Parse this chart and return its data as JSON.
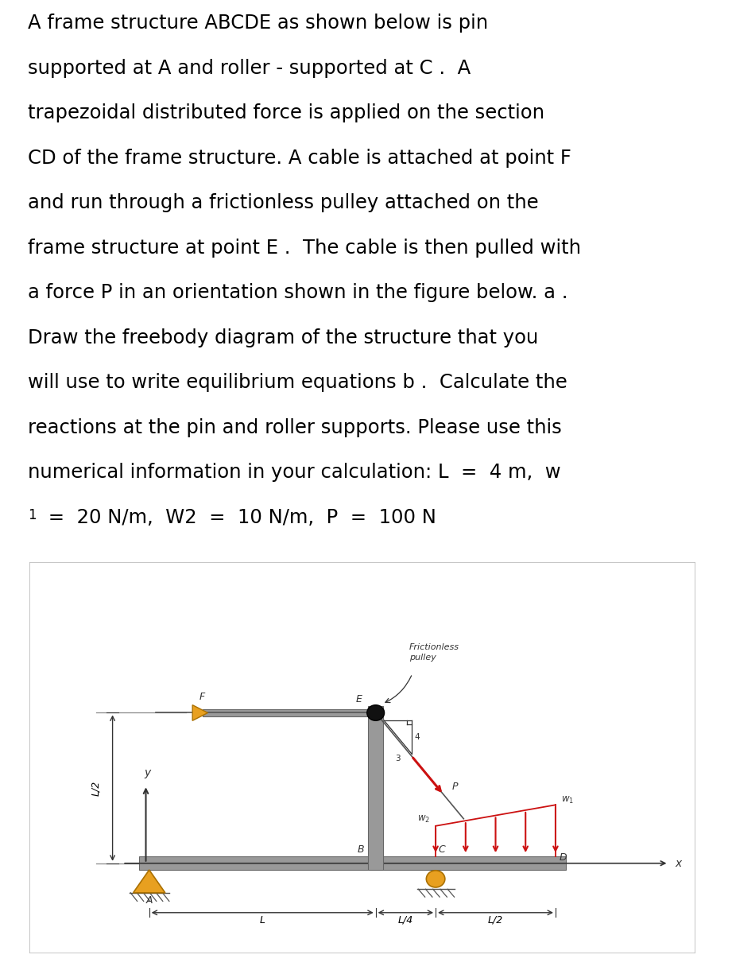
{
  "text_lines": [
    "A frame structure ABCDE as shown below is pin",
    "supported at A and roller - supported at C .  A",
    "trapezoidal distributed force is applied on the section",
    "CD of the frame structure. A cable is attached at point F",
    "and run through a frictionless pulley attached on the",
    "frame structure at point E .  The cable is then pulled with",
    "a force P in an orientation shown in the figure below. a .",
    "Draw the freebody diagram of the structure that you",
    "will use to write equilibrium equations b .  Calculate the",
    "reactions at the pin and roller supports. Please use this",
    "numerical information in your calculation: L  =  4 m,  w"
  ],
  "text_last_line1": "numerical information in your calculation: L  =  4 m,  w",
  "text_last_line2": "1  =  20 N/m,  W2  =  10 N/m,  P  =  100 N",
  "fig_bg": "#ffffff",
  "box_bg": "#eeeeee",
  "orange": "#E8A020",
  "red": "#cc1111",
  "dark_gray": "#333333",
  "struct_gray": "#999999",
  "struct_edge": "#666666"
}
